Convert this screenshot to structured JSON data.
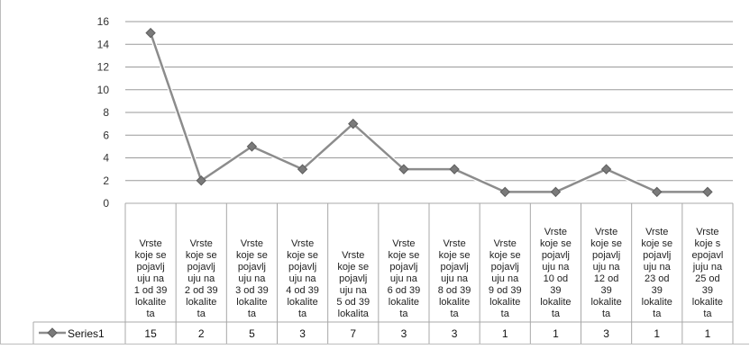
{
  "chart_data": {
    "type": "line",
    "title": "",
    "xlabel": "",
    "ylabel": "",
    "ylim": [
      0,
      16
    ],
    "yticks": [
      0,
      2,
      4,
      6,
      8,
      10,
      12,
      14,
      16
    ],
    "grid": true,
    "legend": "data-table-left",
    "categories": [
      [
        "Vrste",
        "koje se",
        "pojavlj",
        "uju na",
        "1 od 39",
        "lokalite",
        "ta"
      ],
      [
        "Vrste",
        "koje se",
        "pojavlj",
        "uju na",
        "2 od 39",
        "lokalite",
        "ta"
      ],
      [
        "Vrste",
        "koje se",
        "pojavlj",
        "uju na",
        "3 od 39",
        "lokalite",
        "ta"
      ],
      [
        "Vrste",
        "koje se",
        "pojavlj",
        "uju na",
        "4 od 39",
        "lokalite",
        "ta"
      ],
      [
        "Vrste",
        "koje se",
        "pojavlj",
        "uju na",
        "5 od 39",
        "lokalita"
      ],
      [
        "Vrste",
        "koje se",
        "pojavlj",
        "uju na",
        "6 od 39",
        "lokalite",
        "ta"
      ],
      [
        "Vrste",
        "koje se",
        "pojavlj",
        "uju na",
        "8 od 39",
        "lokalite",
        "ta"
      ],
      [
        "Vrste",
        "koje se",
        "pojavlj",
        "uju na",
        "9 od 39",
        "lokalite",
        "ta"
      ],
      [
        "Vrste",
        "koje se",
        "pojavlj",
        "uju na",
        "10 od",
        "39",
        "lokalite",
        "ta"
      ],
      [
        "Vrste",
        "koje se",
        "pojavlj",
        "uju na",
        "12 od",
        "39",
        "lokalite",
        "ta"
      ],
      [
        "Vrste",
        "koje se",
        "pojavlj",
        "uju na",
        "23 od",
        "39",
        "lokalite",
        "ta"
      ],
      [
        "Vrste",
        "koje s",
        "epojavl",
        "juju na",
        "25 od",
        "39",
        "lokalite",
        "ta"
      ]
    ],
    "series": [
      {
        "name": "Series1",
        "values": [
          15,
          2,
          5,
          3,
          7,
          3,
          3,
          1,
          1,
          3,
          1,
          1
        ],
        "color": "#8c8c8c"
      }
    ]
  }
}
